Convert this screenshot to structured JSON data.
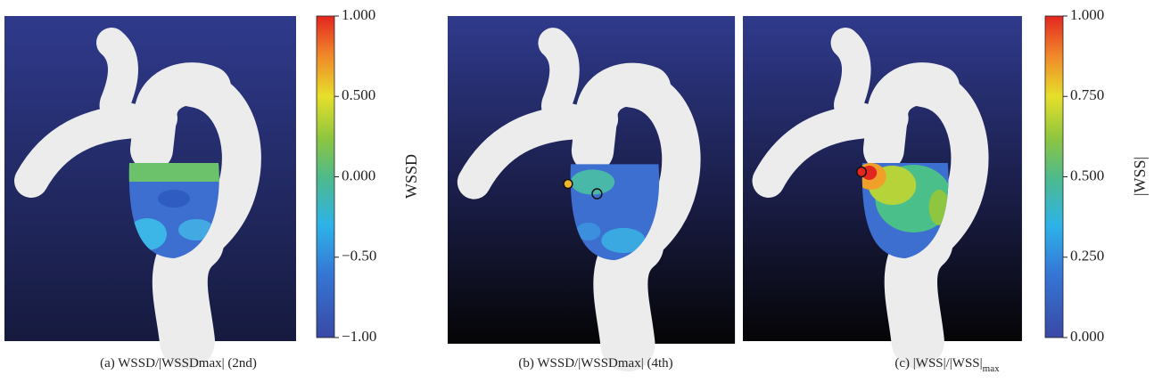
{
  "panels": [
    {
      "caption": {
        "label": "(a)",
        "text": "WSSD/|WSSDmax| (2nd)"
      }
    },
    {
      "caption": {
        "label": "(b)",
        "text": "WSSD/|WSSDmax| (4th)"
      }
    },
    {
      "caption": {
        "label": "(c)",
        "text": "|WSS|/|WSS|",
        "subscript": "max"
      }
    }
  ],
  "colorbars": [
    {
      "label": "WSSD",
      "ticks": [
        "1.000",
        "0.500",
        "0.000",
        "−0.50",
        "−1.00"
      ]
    },
    {
      "label": "|WSS|",
      "ticks": [
        "1.000",
        "0.750",
        "0.500",
        "0.250",
        "0.000"
      ]
    }
  ]
}
